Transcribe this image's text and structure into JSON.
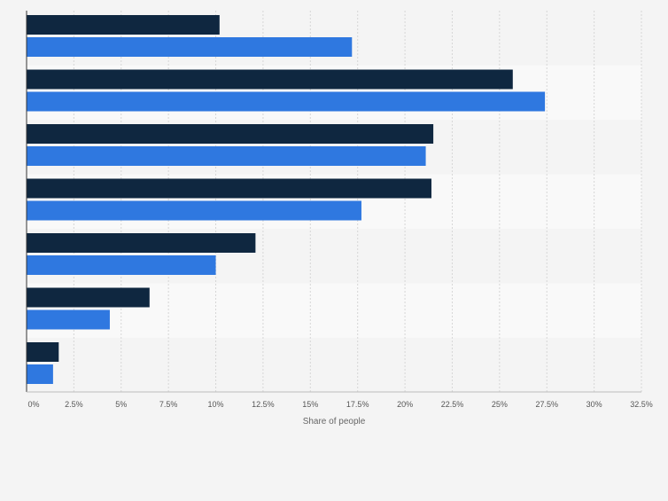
{
  "chart_data": {
    "type": "bar",
    "orientation": "horizontal",
    "categories": [
      "",
      "",
      "",
      "",
      "",
      "",
      ""
    ],
    "series": [
      {
        "values": [
          10.2,
          25.7,
          21.5,
          21.4,
          12.1,
          6.5,
          1.7
        ]
      },
      {
        "values": [
          17.2,
          27.4,
          21.1,
          17.7,
          10.0,
          4.4,
          1.4
        ]
      }
    ],
    "xlabel": "Share of people",
    "ylabel": "",
    "xlim": [
      0,
      32.5
    ],
    "xticks": [
      "0%",
      "2.5%",
      "5%",
      "7.5%",
      "10%",
      "12.5%",
      "15%",
      "17.5%",
      "20%",
      "22.5%",
      "25%",
      "27.5%",
      "30%",
      "32.5%"
    ],
    "grid": true,
    "legend": "none"
  },
  "colors": {
    "series_1": "#0f2740",
    "series_2": "#2f78e0",
    "background": "#f4f4f4",
    "band": "#f9f9f9",
    "grid": "#d6d6d6",
    "axis": "#333333",
    "tick_text": "#555555"
  }
}
